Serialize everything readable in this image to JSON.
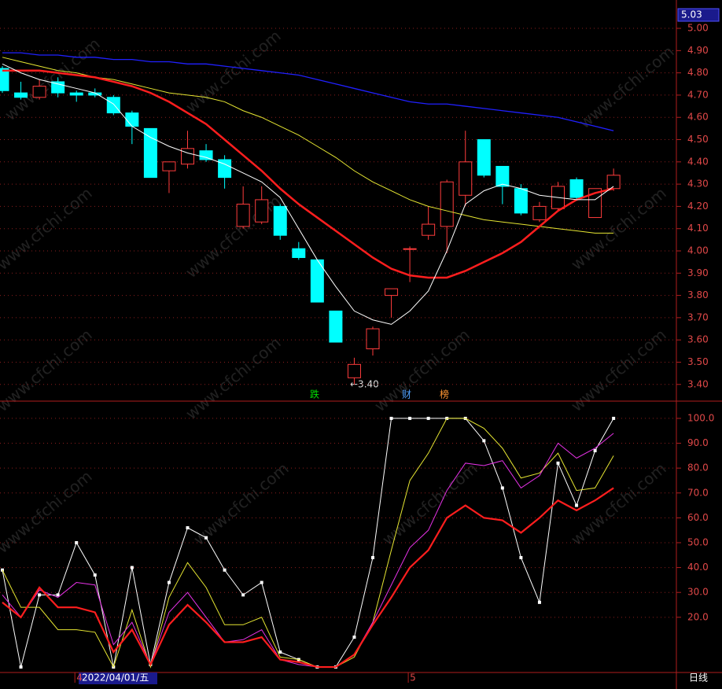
{
  "chart_data": [
    {
      "type": "candlestick",
      "categories": [
        null,
        null,
        null,
        null,
        null,
        null,
        null,
        null,
        null,
        null,
        null,
        null,
        null,
        null,
        null,
        null,
        null,
        null,
        null,
        null,
        null,
        null,
        null,
        null,
        null,
        null,
        null,
        null,
        null,
        null,
        null,
        null,
        null,
        null
      ],
      "open": [
        4.82,
        4.71,
        4.69,
        4.76,
        4.71,
        4.71,
        4.69,
        4.62,
        4.55,
        4.36,
        4.39,
        4.45,
        4.41,
        4.11,
        4.13,
        4.2,
        4.01,
        3.96,
        3.73,
        3.43,
        3.56,
        3.8,
        4.01,
        4.07,
        4.11,
        4.25,
        4.5,
        4.38,
        4.28,
        4.14,
        4.19,
        4.32,
        4.15,
        4.28
      ],
      "high": [
        4.83,
        4.76,
        4.77,
        4.78,
        4.72,
        4.73,
        4.7,
        4.63,
        4.55,
        4.4,
        4.54,
        4.48,
        4.43,
        4.29,
        4.29,
        4.21,
        4.04,
        3.96,
        3.73,
        3.52,
        3.66,
        3.83,
        4.02,
        4.2,
        4.32,
        4.54,
        4.5,
        4.38,
        4.3,
        4.22,
        4.31,
        4.33,
        4.28,
        4.37
      ],
      "low": [
        4.71,
        4.68,
        4.68,
        4.69,
        4.67,
        4.69,
        4.61,
        4.48,
        4.33,
        4.26,
        4.37,
        4.4,
        4.28,
        4.1,
        4.12,
        4.05,
        3.96,
        3.77,
        3.59,
        3.4,
        3.53,
        3.7,
        3.86,
        4.05,
        3.99,
        4.2,
        4.33,
        4.21,
        4.16,
        4.13,
        4.18,
        4.23,
        4.15,
        4.27
      ],
      "close": [
        4.72,
        4.69,
        4.74,
        4.71,
        4.7,
        4.7,
        4.62,
        4.56,
        4.33,
        4.4,
        4.46,
        4.41,
        4.33,
        4.21,
        4.23,
        4.07,
        3.97,
        3.77,
        3.59,
        3.49,
        3.65,
        3.83,
        4.01,
        4.12,
        4.31,
        4.4,
        4.34,
        4.29,
        4.17,
        4.2,
        4.29,
        4.24,
        4.28,
        4.34
      ],
      "up_color": "#ff3c3c",
      "down_color": "#00ffff",
      "series": [
        {
          "color": "#2020ff",
          "width": 1.3,
          "values": [
            4.89,
            4.89,
            4.88,
            4.88,
            4.87,
            4.87,
            4.86,
            4.86,
            4.85,
            4.85,
            4.84,
            4.84,
            4.83,
            4.82,
            4.81,
            4.8,
            4.79,
            4.77,
            4.75,
            4.73,
            4.71,
            4.69,
            4.67,
            4.66,
            4.66,
            4.65,
            4.64,
            4.63,
            4.62,
            4.61,
            4.6,
            4.58,
            4.56,
            4.54
          ]
        },
        {
          "color": "#e6e632",
          "width": 1,
          "values": [
            4.87,
            4.85,
            4.83,
            4.81,
            4.8,
            4.78,
            4.77,
            4.75,
            4.73,
            4.71,
            4.7,
            4.69,
            4.67,
            4.63,
            4.6,
            4.56,
            4.52,
            4.47,
            4.42,
            4.36,
            4.31,
            4.27,
            4.23,
            4.2,
            4.18,
            4.16,
            4.14,
            4.13,
            4.12,
            4.11,
            4.1,
            4.09,
            4.08,
            4.08
          ]
        },
        {
          "color": "#ff1e1e",
          "width": 2.5,
          "values": [
            4.81,
            4.81,
            4.81,
            4.8,
            4.79,
            4.78,
            4.76,
            4.74,
            4.71,
            4.67,
            4.62,
            4.57,
            4.5,
            4.43,
            4.36,
            4.28,
            4.21,
            4.15,
            4.09,
            4.03,
            3.97,
            3.92,
            3.89,
            3.88,
            3.88,
            3.91,
            3.95,
            3.99,
            4.04,
            4.11,
            4.18,
            4.23,
            4.26,
            4.28
          ]
        },
        {
          "color": "#ffffff",
          "width": 1,
          "values": [
            4.84,
            4.8,
            4.77,
            4.75,
            4.73,
            4.71,
            4.66,
            4.56,
            4.51,
            4.47,
            4.44,
            4.42,
            4.39,
            4.35,
            4.31,
            4.24,
            4.1,
            3.96,
            3.84,
            3.73,
            3.69,
            3.67,
            3.73,
            3.82,
            4.0,
            4.21,
            4.27,
            4.3,
            4.28,
            4.25,
            4.24,
            4.23,
            4.23,
            4.29
          ]
        }
      ],
      "annotation": "←3.40",
      "ylim": [
        3.325,
        5.092
      ],
      "yticks": [
        {
          "value": 5.0,
          "label": "5.00"
        },
        {
          "value": 4.9,
          "label": "4.90"
        },
        {
          "value": 4.8,
          "label": "4.80"
        },
        {
          "value": 4.7,
          "label": "4.70"
        },
        {
          "value": 4.6,
          "label": "4.60"
        },
        {
          "value": 4.5,
          "label": "4.50"
        },
        {
          "value": 4.4,
          "label": "4.40"
        },
        {
          "value": 4.3,
          "label": "4.30"
        },
        {
          "value": 4.2,
          "label": "4.20"
        },
        {
          "value": 4.1,
          "label": "4.10"
        },
        {
          "value": 4.0,
          "label": "4.00"
        },
        {
          "value": 3.9,
          "label": "3.90"
        },
        {
          "value": 3.8,
          "label": "3.80"
        },
        {
          "value": 3.7,
          "label": "3.70"
        },
        {
          "value": 3.6,
          "label": "3.60"
        },
        {
          "value": 3.5,
          "label": "3.50"
        },
        {
          "value": 3.4,
          "label": "3.40"
        }
      ],
      "grid": true
    },
    {
      "type": "line",
      "categories": [
        null,
        null,
        null,
        null,
        "4",
        null,
        null,
        null,
        null,
        null,
        null,
        null,
        null,
        null,
        null,
        null,
        null,
        null,
        null,
        null,
        null,
        null,
        "5",
        null,
        null,
        null,
        null,
        null,
        null,
        null,
        null,
        null,
        null,
        null
      ],
      "series": [
        {
          "color": "#ffffff",
          "width": 1,
          "markers": true,
          "values": [
            39,
            0,
            29,
            29,
            50,
            37,
            0,
            40,
            1,
            34,
            56,
            52,
            39,
            29,
            34,
            6,
            3,
            0,
            0,
            12,
            44,
            100,
            100,
            100,
            100,
            100,
            91,
            72,
            44,
            26,
            82,
            65,
            87,
            100
          ]
        },
        {
          "color": "#e6e632",
          "width": 1,
          "values": [
            39,
            24,
            24,
            15,
            15,
            14,
            0,
            23,
            0,
            28,
            42,
            32,
            17,
            17,
            20,
            4,
            3,
            0,
            0,
            4,
            18,
            47,
            75,
            86,
            100,
            100,
            96,
            88,
            76,
            78,
            86,
            71,
            72,
            85
          ]
        },
        {
          "color": "#e632e6",
          "width": 1,
          "values": [
            29,
            20,
            31,
            28,
            34,
            33,
            9,
            18,
            1,
            22,
            30,
            20,
            10,
            11,
            15,
            3,
            1,
            0,
            0,
            5,
            18,
            33,
            48,
            55,
            71,
            82,
            81,
            83,
            72,
            77,
            90,
            84,
            88,
            94
          ]
        },
        {
          "color": "#ff1e1e",
          "width": 2.2,
          "values": [
            26,
            20,
            32,
            24,
            24,
            22,
            6,
            15,
            1,
            17,
            25,
            18,
            10,
            10,
            12,
            3,
            2,
            0,
            0,
            5,
            17,
            28,
            40,
            47,
            60,
            65,
            60,
            59,
            54,
            60,
            67,
            63,
            67,
            72
          ]
        }
      ],
      "ylim": [
        -2.2,
        106.3
      ],
      "yticks": [
        {
          "value": 100,
          "label": "100.0"
        },
        {
          "value": 90,
          "label": "90.0"
        },
        {
          "value": 80,
          "label": "80.0"
        },
        {
          "value": 70,
          "label": "70.0"
        },
        {
          "value": 60,
          "label": "60.0"
        },
        {
          "value": 50,
          "label": "50.0"
        },
        {
          "value": 40,
          "label": "40.0"
        },
        {
          "value": 30,
          "label": "30.0"
        },
        {
          "value": 20,
          "label": "20.0"
        }
      ],
      "grid": true
    }
  ],
  "price_label": "5.03",
  "events": [
    "跌",
    "财",
    "榜"
  ],
  "cursor_date": "2022/04/01/五",
  "period": "日线",
  "watermark": "www.cfchi.com"
}
